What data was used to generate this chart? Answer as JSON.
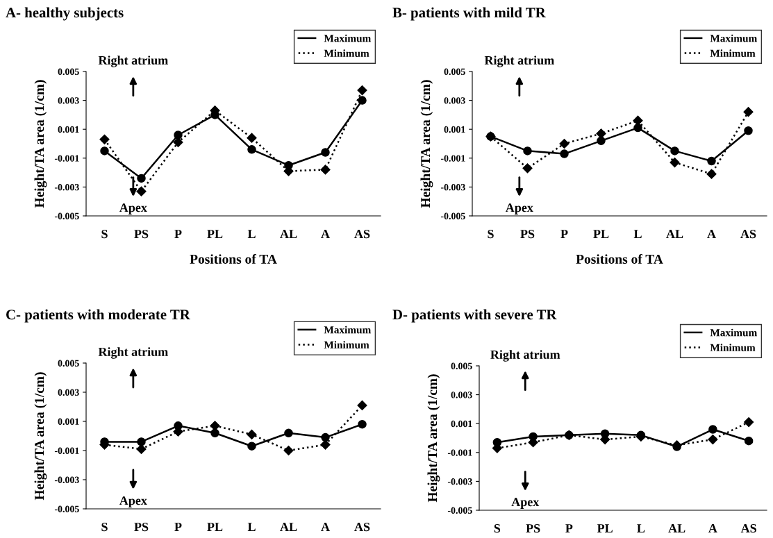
{
  "chart_data": [
    {
      "type": "line",
      "title": "A- healthy subjects",
      "xlabel": "Positions of TA",
      "ylabel": "Height/TA area (1/cm)",
      "categories": [
        "S",
        "PS",
        "P",
        "PL",
        "L",
        "AL",
        "A",
        "AS"
      ],
      "ylim": [
        -0.005,
        0.005
      ],
      "yticks": [
        0.005,
        0.003,
        0.001,
        -0.001,
        -0.003,
        -0.005
      ],
      "grid": false,
      "legend": "top right",
      "annotations": [
        "Right atrium",
        "Apex"
      ],
      "series": [
        {
          "name": "Maximum",
          "color": "#000000",
          "marker": "circle",
          "line_style": "solid",
          "values": [
            -0.0005,
            -0.0024,
            0.0006,
            0.002,
            -0.0004,
            -0.0015,
            -0.0006,
            0.003
          ]
        },
        {
          "name": "Minimum",
          "color": "#000000",
          "marker": "diamond",
          "line_style": "dotted",
          "values": [
            0.0003,
            -0.0033,
            0.0001,
            0.0023,
            0.0004,
            -0.0019,
            -0.0018,
            0.0037
          ]
        }
      ]
    },
    {
      "type": "line",
      "title": "B- patients with mild TR",
      "xlabel": "Positions of TA",
      "ylabel": "Height/TA area (1/cm)",
      "categories": [
        "S",
        "PS",
        "P",
        "PL",
        "L",
        "AL",
        "A",
        "AS"
      ],
      "ylim": [
        -0.005,
        0.005
      ],
      "yticks": [
        0.005,
        0.003,
        0.001,
        -0.001,
        -0.003,
        -0.005
      ],
      "grid": false,
      "legend": "top right",
      "annotations": [
        "Right atrium",
        "Apex"
      ],
      "series": [
        {
          "name": "Maximum",
          "color": "#000000",
          "marker": "circle",
          "line_style": "solid",
          "values": [
            0.0005,
            -0.0005,
            -0.0007,
            0.0002,
            0.0011,
            -0.0005,
            -0.0012,
            0.0009
          ]
        },
        {
          "name": "Minimum",
          "color": "#000000",
          "marker": "diamond",
          "line_style": "dotted",
          "values": [
            0.0005,
            -0.0017,
            0.0,
            0.0007,
            0.0016,
            -0.0013,
            -0.0021,
            0.0022
          ]
        }
      ]
    },
    {
      "type": "line",
      "title": "C- patients with moderate TR",
      "ylabel": "Height/TA area (1/cm)",
      "categories": [
        "S",
        "PS",
        "P",
        "PL",
        "L",
        "AL",
        "A",
        "AS"
      ],
      "ylim": [
        -0.005,
        0.005
      ],
      "yticks": [
        0.005,
        0.003,
        0.001,
        -0.001,
        -0.003,
        -0.005
      ],
      "grid": false,
      "legend": "top right",
      "annotations": [
        "Right atrium",
        "Apex"
      ],
      "series": [
        {
          "name": "Maximum",
          "color": "#000000",
          "marker": "circle",
          "line_style": "solid",
          "values": [
            -0.0004,
            -0.0004,
            0.0007,
            0.0002,
            -0.0007,
            0.0002,
            -0.0001,
            0.0008
          ]
        },
        {
          "name": "Minimum",
          "color": "#000000",
          "marker": "diamond",
          "line_style": "dotted",
          "values": [
            -0.0006,
            -0.0009,
            0.0003,
            0.0007,
            0.0001,
            -0.001,
            -0.0006,
            0.0021
          ]
        }
      ]
    },
    {
      "type": "line",
      "title": "D- patients with severe TR",
      "ylabel": "Height/TA area (1/cm)",
      "categories": [
        "S",
        "PS",
        "P",
        "PL",
        "L",
        "AL",
        "A",
        "AS"
      ],
      "ylim": [
        -0.005,
        0.005
      ],
      "yticks": [
        0.005,
        0.003,
        0.001,
        -0.001,
        -0.003,
        -0.005
      ],
      "grid": false,
      "legend": "top right",
      "annotations": [
        "Right atrium",
        "Apex"
      ],
      "series": [
        {
          "name": "Maximum",
          "color": "#000000",
          "marker": "circle",
          "line_style": "solid",
          "values": [
            -0.0003,
            0.0001,
            0.0002,
            0.0003,
            0.0002,
            -0.0006,
            0.0006,
            -0.0002
          ]
        },
        {
          "name": "Minimum",
          "color": "#000000",
          "marker": "diamond",
          "line_style": "dotted",
          "values": [
            -0.0007,
            -0.0003,
            0.0002,
            -0.0001,
            0.0001,
            -0.0005,
            -0.0001,
            0.0011
          ]
        }
      ]
    }
  ]
}
